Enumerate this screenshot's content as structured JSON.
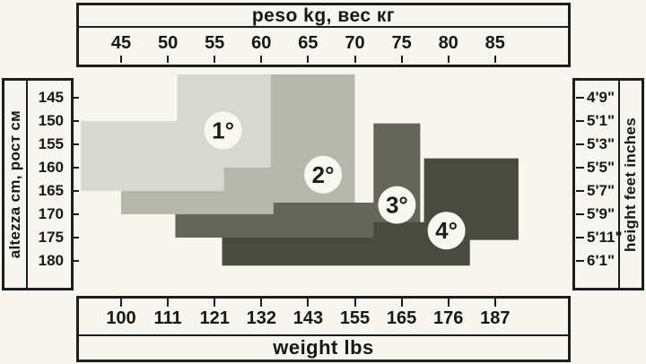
{
  "chart_data": {
    "type": "region-size-chart",
    "x_axis_top": {
      "label": "peso kg, вес кг",
      "ticks": [
        "45",
        "50",
        "55",
        "60",
        "65",
        "70",
        "75",
        "80",
        "85"
      ]
    },
    "x_axis_bottom": {
      "label": "weight lbs",
      "ticks": [
        "100",
        "111",
        "121",
        "132",
        "143",
        "155",
        "165",
        "176",
        "187"
      ]
    },
    "y_axis_left": {
      "label": "altezza cm, рост см",
      "ticks": [
        "145",
        "150",
        "155",
        "160",
        "165",
        "170",
        "175",
        "180"
      ]
    },
    "y_axis_right": {
      "label": "height feet inches",
      "ticks": [
        "4'9\"",
        "5'1\"",
        "5'3\"",
        "5'5\"",
        "5'7\"",
        "5'9\"",
        "5'11\"",
        "6'1\""
      ]
    },
    "axis_ranges": {
      "kg_ticks_numeric": [
        45,
        50,
        55,
        60,
        65,
        70,
        75,
        80,
        85
      ],
      "cm_ticks_numeric": [
        145,
        150,
        155,
        160,
        165,
        170,
        175,
        180
      ]
    },
    "regions": [
      {
        "label": "1°",
        "color": "#d7d8cf",
        "badge": {
          "kg": 55.9,
          "cm": 152.0
        },
        "polygon": [
          [
            51,
            140
          ],
          [
            61,
            140
          ],
          [
            61,
            160
          ],
          [
            56,
            160
          ],
          [
            56,
            165
          ],
          [
            40.7,
            165
          ],
          [
            40.7,
            150
          ],
          [
            51,
            150
          ]
        ]
      },
      {
        "label": "2°",
        "color": "#b6b8ae",
        "badge": {
          "kg": 66.6,
          "cm": 161.5
        },
        "polygon": [
          [
            61,
            140
          ],
          [
            70,
            140
          ],
          [
            70,
            170
          ],
          [
            45,
            170
          ],
          [
            45,
            165
          ],
          [
            56,
            165
          ],
          [
            56,
            160
          ],
          [
            61,
            160
          ]
        ]
      },
      {
        "label": "3°",
        "color": "#64665c",
        "badge": {
          "kg": 74.5,
          "cm": 168.0
        },
        "polygon": [
          [
            72,
            150.5
          ],
          [
            77,
            150.5
          ],
          [
            77,
            175
          ],
          [
            50.8,
            175
          ],
          [
            50.8,
            170
          ],
          [
            61.3,
            170
          ],
          [
            61.3,
            167.5
          ],
          [
            72,
            167.5
          ]
        ]
      },
      {
        "label": "4°",
        "color": "#494a40",
        "badge": {
          "kg": 79.8,
          "cm": 173.5
        },
        "polygon": [
          [
            77.4,
            158
          ],
          [
            87.5,
            158
          ],
          [
            87.5,
            175.5
          ],
          [
            82.3,
            175.5
          ],
          [
            82.3,
            181
          ],
          [
            55.8,
            181
          ],
          [
            55.8,
            175
          ],
          [
            72,
            175
          ],
          [
            72,
            171.7
          ],
          [
            77.4,
            171.7
          ]
        ]
      }
    ],
    "badge_fill": "#f8f7f2",
    "ink_color": "#1d1d1b"
  }
}
